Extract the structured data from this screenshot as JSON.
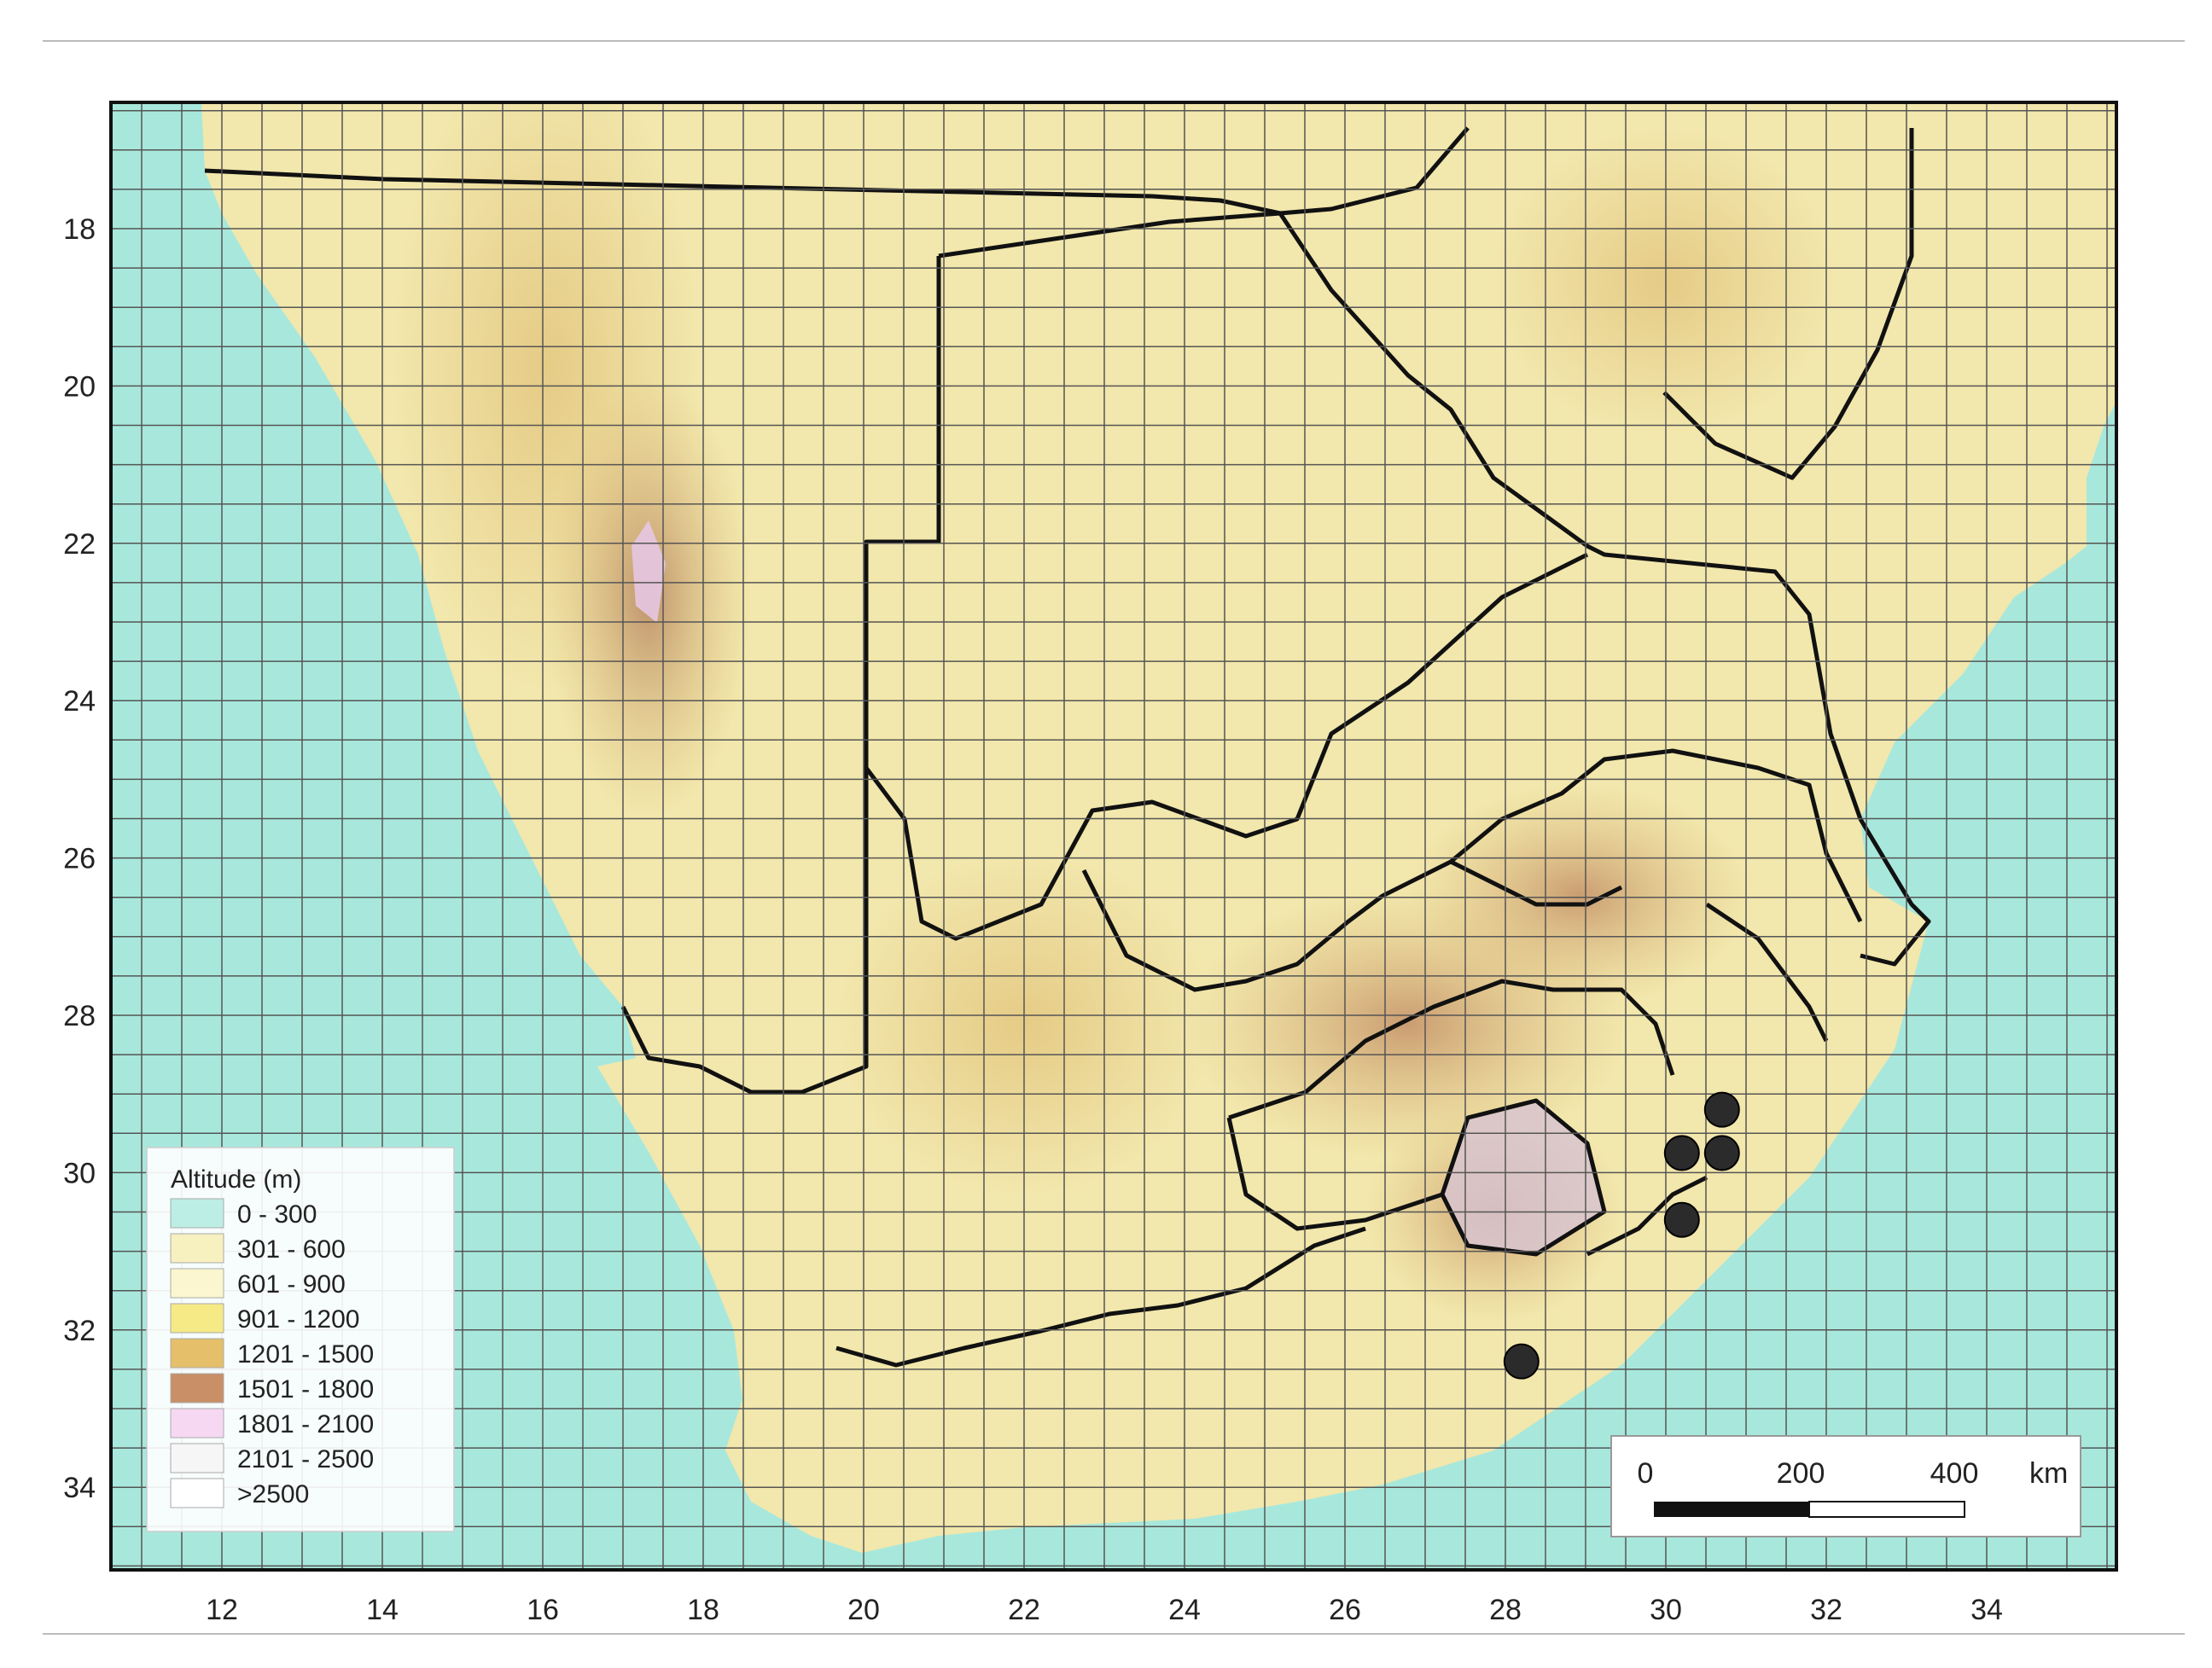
{
  "map": {
    "x_ticks": [
      "12",
      "14",
      "16",
      "18",
      "20",
      "22",
      "24",
      "26",
      "28",
      "30",
      "32",
      "34"
    ],
    "y_ticks": [
      "18",
      "20",
      "22",
      "24",
      "26",
      "28",
      "30",
      "32",
      "34"
    ],
    "legend": {
      "title": "Altitude (m)",
      "classes": [
        {
          "label": "0 - 300",
          "color": "#bdeee6"
        },
        {
          "label": "301 - 600",
          "color": "#f7f0bf"
        },
        {
          "label": "601 - 900",
          "color": "#fbf6cf"
        },
        {
          "label": "901 - 1200",
          "color": "#f5ea86"
        },
        {
          "label": "1201 - 1500",
          "color": "#e5bf6a"
        },
        {
          "label": "1501 - 1800",
          "color": "#c98f66"
        },
        {
          "label": "1801 - 2100",
          "color": "#f7d8f2"
        },
        {
          "label": "2101 - 2500",
          "color": "#f6f6f6"
        },
        {
          "label": ">2500",
          "color": "#ffffff"
        }
      ]
    },
    "scale_bar": {
      "labels": [
        "0",
        "200",
        "400"
      ],
      "unit": "km"
    },
    "sites": [
      {
        "lon": 30.7,
        "lat": 29.2
      },
      {
        "lon": 30.2,
        "lat": 29.75
      },
      {
        "lon": 30.7,
        "lat": 29.75
      },
      {
        "lon": 30.2,
        "lat": 30.6
      },
      {
        "lon": 28.2,
        "lat": 32.4
      }
    ],
    "colors": {
      "ocean": "#a8e8dc",
      "lowland": "#f2e7ac",
      "plateau": "#e8d283",
      "highland": "#c9a86a",
      "mountain": "#b48060",
      "peak": "#e8c8e8",
      "border": "#111111",
      "grid": "#555555"
    }
  }
}
